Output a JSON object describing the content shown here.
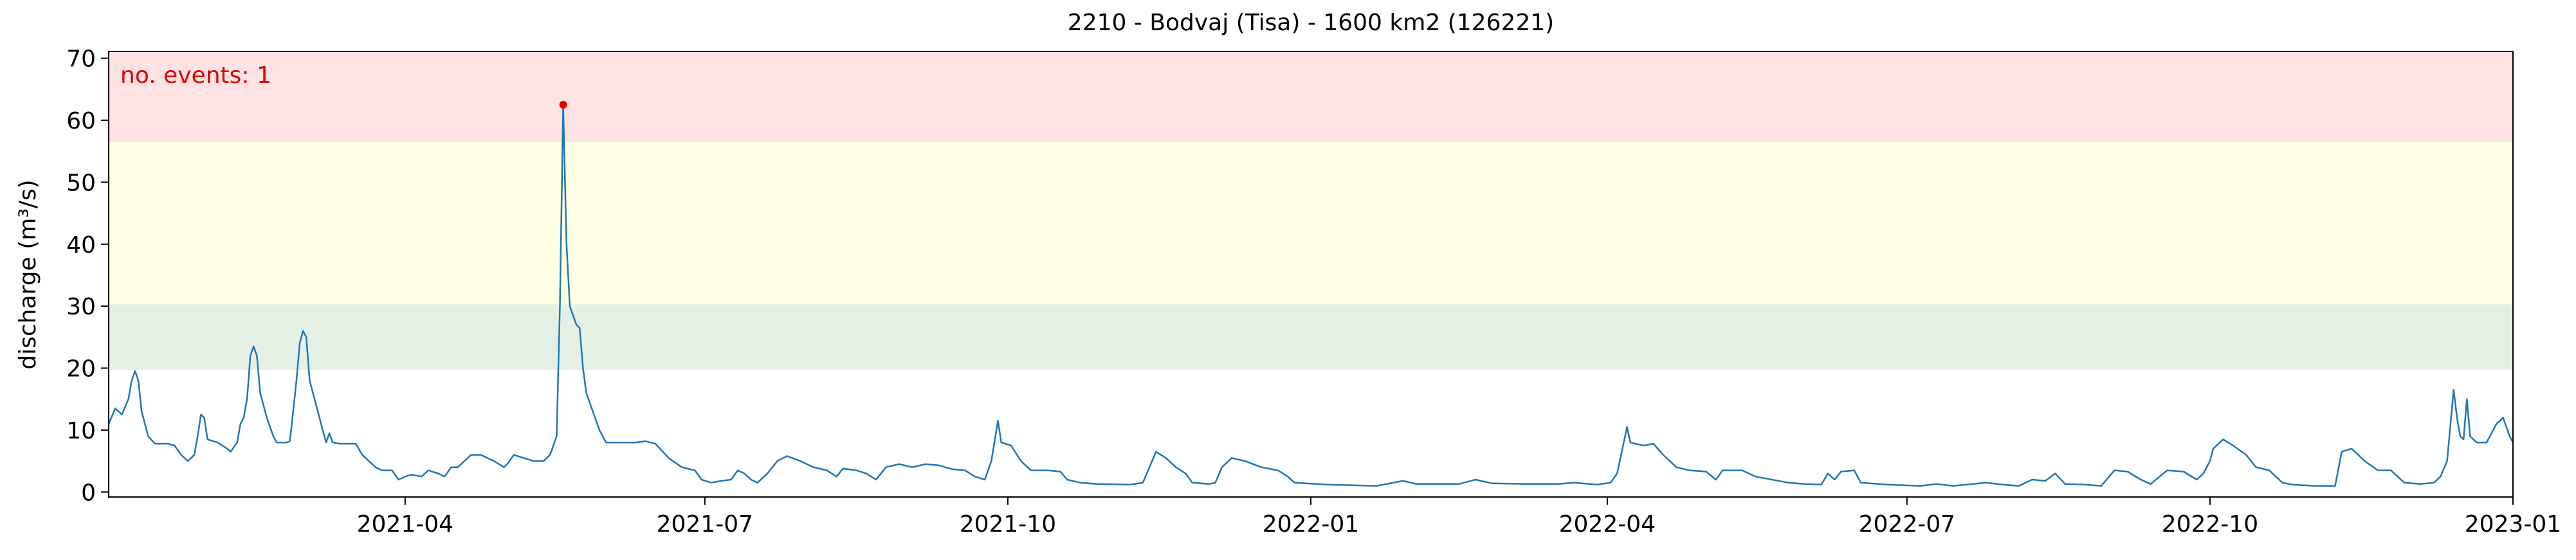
{
  "chart_data": {
    "type": "line",
    "title": "2210 - Bodvaj (Tisa) - 1600 km2 (126221)",
    "y_label": "discharge (m³/s)",
    "annotation": "no. events: 1",
    "annotation_color": "#e00000",
    "color": "#1f77b4",
    "xlim": [
      0,
      730
    ],
    "xticks": [
      {
        "value": 90,
        "label": "2021-04"
      },
      {
        "value": 181,
        "label": "2021-07"
      },
      {
        "value": 273,
        "label": "2021-10"
      },
      {
        "value": 365,
        "label": "2022-01"
      },
      {
        "value": 455,
        "label": "2022-04"
      },
      {
        "value": 546,
        "label": "2022-07"
      },
      {
        "value": 638,
        "label": "2022-10"
      },
      {
        "value": 730,
        "label": "2023-01"
      }
    ],
    "ylim": [
      -0.8,
      71.1
    ],
    "yticks": [
      0,
      10,
      20,
      30,
      40,
      50,
      60,
      70
    ],
    "bands": [
      {
        "from": 19.7,
        "to": 30.3,
        "color": "#e5f0e5"
      },
      {
        "from": 30.3,
        "to": 56.5,
        "color": "#ffffe4"
      },
      {
        "from": 56.5,
        "to": 71.1,
        "color": "#ffe2e4"
      }
    ],
    "events": {
      "x": [
        138
      ],
      "values": [
        62.5
      ],
      "color": "#e00000"
    },
    "x": [
      0,
      2,
      3,
      4,
      6,
      7,
      8,
      9,
      10,
      12,
      14,
      18,
      20,
      22,
      24,
      26,
      27,
      28,
      29,
      30,
      33,
      36,
      37,
      39,
      40,
      41,
      42,
      43,
      44,
      45,
      46,
      48,
      50,
      51,
      54,
      55,
      56,
      57,
      58,
      59,
      60,
      61,
      63,
      65,
      66,
      67,
      68,
      70,
      75,
      77,
      79,
      81,
      83,
      86,
      88,
      90,
      92,
      95,
      97,
      100,
      102,
      104,
      106,
      108,
      110,
      113,
      117,
      120,
      121,
      123,
      126,
      129,
      132,
      134,
      136,
      137,
      138,
      139,
      140,
      142,
      143,
      144,
      145,
      147,
      149,
      151,
      153,
      160,
      163,
      166,
      170,
      174,
      178,
      180,
      183,
      186,
      189,
      191,
      193,
      195,
      197,
      200,
      203,
      206,
      210,
      214,
      218,
      221,
      223,
      227,
      230,
      233,
      236,
      240,
      244,
      248,
      252,
      256,
      260,
      263,
      266,
      268,
      270,
      271,
      274,
      277,
      280,
      285,
      289,
      291,
      295,
      300,
      310,
      314,
      316,
      318,
      321,
      324,
      327,
      329,
      334,
      336,
      338,
      341,
      345,
      350,
      355,
      358,
      360,
      370,
      385,
      393,
      397,
      410,
      415,
      420,
      430,
      440,
      445,
      452,
      456,
      458,
      460,
      461,
      462,
      466,
      469,
      472,
      476,
      480,
      485,
      488,
      490,
      496,
      500,
      505,
      510,
      515,
      520,
      522,
      524,
      526,
      530,
      532,
      540,
      550,
      555,
      560,
      570,
      575,
      580,
      584,
      588,
      591,
      594,
      600,
      605,
      609,
      613,
      617,
      620,
      625,
      630,
      634,
      636,
      638,
      639,
      642,
      645,
      649,
      652,
      656,
      660,
      663,
      670,
      676,
      678,
      681,
      685,
      689,
      693,
      697,
      702,
      706,
      708,
      710,
      712,
      713,
      714,
      715,
      716,
      717,
      719,
      722,
      725,
      727,
      729,
      730
    ],
    "values": [
      11,
      13.5,
      13,
      12.5,
      15,
      18,
      19.5,
      18,
      13,
      9,
      7.8,
      7.8,
      7.5,
      6,
      5,
      6,
      9,
      12.5,
      12,
      8.5,
      8,
      7,
      6.5,
      8,
      11,
      12,
      15,
      22,
      23.5,
      22,
      16,
      12,
      9,
      8,
      8,
      8.2,
      13,
      18,
      24,
      26,
      25,
      18,
      14,
      10,
      8,
      9.5,
      8,
      7.8,
      7.8,
      6,
      5,
      4,
      3.5,
      3.5,
      2,
      2.5,
      2.8,
      2.5,
      3.5,
      3,
      2.5,
      4,
      4,
      5,
      6,
      6,
      5,
      4,
      4.5,
      6,
      5.5,
      5,
      5,
      6,
      9,
      30,
      62.5,
      40,
      30,
      27,
      26.5,
      20,
      16,
      13,
      10,
      8,
      8,
      8,
      8.2,
      7.8,
      5.5,
      4,
      3.5,
      2,
      1.5,
      1.8,
      2,
      3.5,
      3,
      2,
      1.5,
      3,
      5,
      5.8,
      5,
      4,
      3.5,
      2.5,
      3.8,
      3.5,
      3,
      2,
      4,
      4.5,
      4,
      4.5,
      4.3,
      3.7,
      3.5,
      2.5,
      2,
      5,
      11.5,
      8,
      7.5,
      5,
      3.5,
      3.5,
      3.3,
      2,
      1.5,
      1.3,
      1.2,
      1.5,
      4,
      6.5,
      5.5,
      4,
      3,
      1.5,
      1.3,
      1.5,
      4,
      5.5,
      5,
      4,
      3.5,
      2.5,
      1.5,
      1.2,
      1,
      1.8,
      1.3,
      1.3,
      2,
      1.4,
      1.3,
      1.3,
      1.5,
      1.2,
      1.5,
      3,
      8,
      10.5,
      8,
      7.5,
      7.8,
      6,
      4,
      3.5,
      3.3,
      2,
      3.5,
      3.5,
      2.5,
      2,
      1.5,
      1.3,
      1.2,
      3,
      2,
      3.3,
      3.5,
      1.5,
      1.2,
      1,
      1.3,
      1,
      1.5,
      1.2,
      1,
      2,
      1.8,
      3,
      1.3,
      1.2,
      1,
      3.5,
      3.3,
      2,
      1.3,
      3.5,
      3.3,
      2,
      3,
      5,
      7,
      8.5,
      7.5,
      6,
      4,
      3.5,
      1.5,
      1.2,
      1,
      1,
      6.5,
      7,
      5,
      3.5,
      3.5,
      1.5,
      1.3,
      1.5,
      2.5,
      5,
      16.5,
      12,
      9,
      8.5,
      15,
      9,
      8,
      8,
      11,
      12,
      9,
      8
    ]
  }
}
